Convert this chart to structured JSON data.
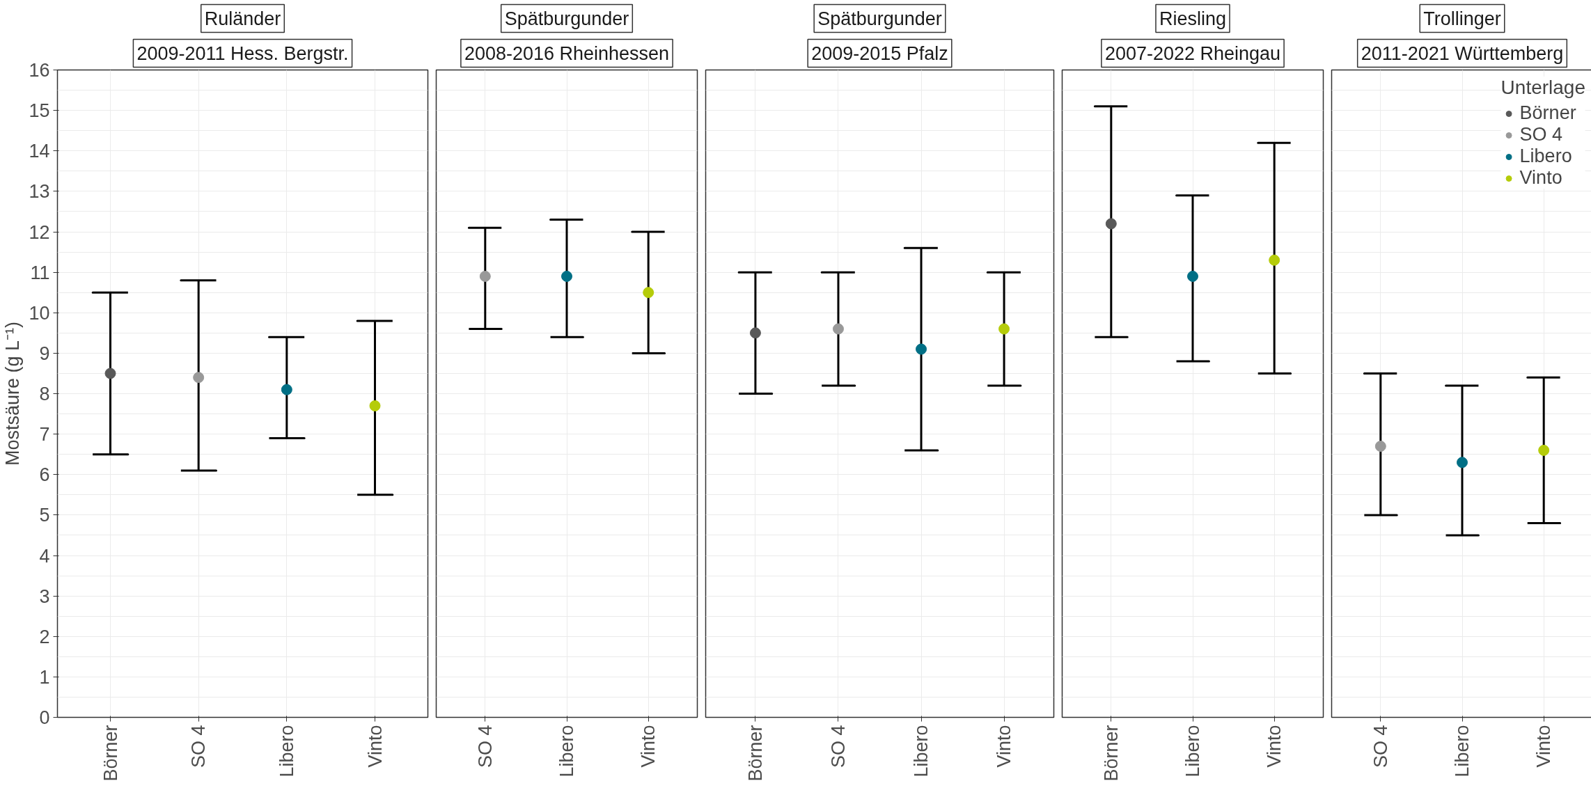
{
  "chart_data": [
    {
      "type": "scatter",
      "title": "Ruländer",
      "subtitle": "2009-2011 Hess. Bergstr.",
      "ylabel": "Mostsäure (g L⁻¹)",
      "categories": [
        "Börner",
        "SO 4",
        "Libero",
        "Vinto"
      ],
      "ylim": [
        0,
        16
      ],
      "yticks": [
        0,
        1,
        2,
        3,
        4,
        5,
        6,
        7,
        8,
        9,
        10,
        11,
        12,
        13,
        14,
        15,
        16
      ],
      "grid": true,
      "marker": "circle",
      "series": [
        {
          "color": "#595959",
          "values": [
            8.5,
            null,
            null,
            null
          ],
          "errors": [
            [
              6.5,
              10.5
            ],
            null,
            null,
            null
          ]
        },
        {
          "color": "#999999",
          "values": [
            null,
            8.4,
            null,
            null
          ],
          "errors": [
            null,
            [
              6.1,
              10.8
            ],
            null,
            null
          ]
        },
        {
          "color": "#006f85",
          "values": [
            null,
            null,
            8.1,
            null
          ],
          "errors": [
            null,
            null,
            [
              6.9,
              9.4
            ],
            null
          ]
        },
        {
          "color": "#b5cc0a",
          "values": [
            null,
            null,
            null,
            7.7
          ],
          "errors": [
            null,
            null,
            null,
            [
              5.5,
              9.8
            ]
          ]
        }
      ]
    },
    {
      "type": "scatter",
      "title": "Spätburgunder",
      "subtitle": "2008-2016 Rheinhessen",
      "categories": [
        "SO 4",
        "Libero",
        "Vinto"
      ],
      "ylim": [
        0,
        16
      ],
      "yticks": [
        0,
        1,
        2,
        3,
        4,
        5,
        6,
        7,
        8,
        9,
        10,
        11,
        12,
        13,
        14,
        15,
        16
      ],
      "tick_labels": "x",
      "grid": true,
      "marker": "circle",
      "series": [
        {
          "color": "#999999",
          "values": [
            10.9,
            null,
            null
          ],
          "errors": [
            [
              9.6,
              12.1
            ],
            null,
            null
          ]
        },
        {
          "color": "#006f85",
          "values": [
            null,
            10.9,
            null
          ],
          "errors": [
            null,
            [
              9.4,
              12.3
            ],
            null
          ]
        },
        {
          "color": "#b5cc0a",
          "values": [
            null,
            null,
            10.5
          ],
          "errors": [
            null,
            null,
            [
              9.0,
              12.0
            ]
          ]
        }
      ]
    },
    {
      "type": "scatter",
      "title": "Spätburgunder",
      "subtitle": "2009-2015 Pfalz",
      "categories": [
        "Börner",
        "SO 4",
        "Libero",
        "Vinto"
      ],
      "ylim": [
        0,
        16
      ],
      "yticks": [
        0,
        1,
        2,
        3,
        4,
        5,
        6,
        7,
        8,
        9,
        10,
        11,
        12,
        13,
        14,
        15,
        16
      ],
      "tick_labels": "x",
      "grid": true,
      "marker": "circle",
      "series": [
        {
          "color": "#595959",
          "values": [
            9.5,
            null,
            null,
            null
          ],
          "errors": [
            [
              8.0,
              11.0
            ],
            null,
            null,
            null
          ]
        },
        {
          "color": "#999999",
          "values": [
            null,
            9.6,
            null,
            null
          ],
          "errors": [
            null,
            [
              8.2,
              11.0
            ],
            null,
            null
          ]
        },
        {
          "color": "#006f85",
          "values": [
            null,
            null,
            9.1,
            null
          ],
          "errors": [
            null,
            null,
            [
              6.6,
              11.6
            ],
            null
          ]
        },
        {
          "color": "#b5cc0a",
          "values": [
            null,
            null,
            null,
            9.6
          ],
          "errors": [
            null,
            null,
            null,
            [
              8.2,
              11.0
            ]
          ]
        }
      ]
    },
    {
      "type": "scatter",
      "title": "Riesling",
      "subtitle": "2007-2022 Rheingau",
      "categories": [
        "Börner",
        "Libero",
        "Vinto"
      ],
      "ylim": [
        0,
        16
      ],
      "yticks": [
        0,
        1,
        2,
        3,
        4,
        5,
        6,
        7,
        8,
        9,
        10,
        11,
        12,
        13,
        14,
        15,
        16
      ],
      "tick_labels": "x",
      "grid": true,
      "marker": "circle",
      "series": [
        {
          "color": "#595959",
          "values": [
            12.2,
            null,
            null
          ],
          "errors": [
            [
              9.4,
              15.1
            ],
            null,
            null
          ]
        },
        {
          "color": "#006f85",
          "values": [
            null,
            10.9,
            null
          ],
          "errors": [
            null,
            [
              8.8,
              12.9
            ],
            null
          ]
        },
        {
          "color": "#b5cc0a",
          "values": [
            null,
            null,
            11.3
          ],
          "errors": [
            null,
            null,
            [
              8.5,
              14.2
            ]
          ]
        }
      ]
    },
    {
      "type": "scatter",
      "title": "Trollinger",
      "subtitle": "2011-2021 Württemberg",
      "categories": [
        "SO 4",
        "Libero",
        "Vinto"
      ],
      "ylim": [
        0,
        16
      ],
      "yticks": [
        0,
        1,
        2,
        3,
        4,
        5,
        6,
        7,
        8,
        9,
        10,
        11,
        12,
        13,
        14,
        15,
        16
      ],
      "tick_labels": "x",
      "grid": true,
      "marker": "circle",
      "legend": "top right",
      "legend_title": "Unterlage",
      "series": [
        {
          "name": "Börner",
          "color": "#595959",
          "values": [
            null,
            null,
            null
          ],
          "errors": [
            null,
            null,
            null
          ]
        },
        {
          "name": "SO 4",
          "color": "#999999",
          "values": [
            6.7,
            null,
            null
          ],
          "errors": [
            [
              5.0,
              8.5
            ],
            null,
            null
          ]
        },
        {
          "name": "Libero",
          "color": "#006f85",
          "values": [
            null,
            6.3,
            null
          ],
          "errors": [
            null,
            [
              4.5,
              8.2
            ],
            null
          ]
        },
        {
          "name": "Vinto",
          "color": "#b5cc0a",
          "values": [
            null,
            null,
            6.6
          ],
          "errors": [
            null,
            null,
            [
              4.8,
              8.4
            ]
          ]
        }
      ]
    }
  ]
}
